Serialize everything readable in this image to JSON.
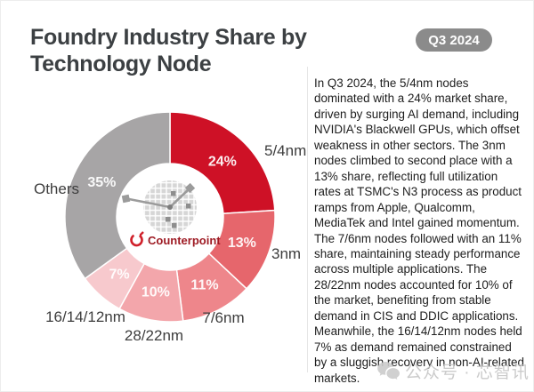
{
  "header": {
    "title": "Foundry Industry Share by Technology Node",
    "badge": "Q3 2024"
  },
  "chart_data": {
    "type": "pie",
    "subtype": "donut",
    "title": "Foundry Industry Share by Technology Node",
    "period": "Q3 2024",
    "unit": "percent",
    "start_angle_deg": 0,
    "direction": "clockwise",
    "slices": [
      {
        "label": "5/4nm",
        "value": 24,
        "percent_label": "24%",
        "color": "#CE1126"
      },
      {
        "label": "3nm",
        "value": 13,
        "percent_label": "13%",
        "color": "#E6666C"
      },
      {
        "label": "7/6nm",
        "value": 11,
        "percent_label": "11%",
        "color": "#EE868B"
      },
      {
        "label": "28/22nm",
        "value": 10,
        "percent_label": "10%",
        "color": "#F3A6AB"
      },
      {
        "label": "16/14/12nm",
        "value": 7,
        "percent_label": "7%",
        "color": "#F7C9CD"
      },
      {
        "label": "Others",
        "value": 35,
        "percent_label": "35%",
        "color": "#A7A5A6"
      }
    ],
    "center_branding": "Counterpoint",
    "legend_position": "around-donut"
  },
  "logo": {
    "name": "Counterpoint",
    "text_color": "#9E1B24",
    "icon_color": "#D0202A"
  },
  "article": {
    "body": "In Q3 2024, the 5/4nm nodes dominated with a 24% market share, driven by surging AI demand, including NVIDIA's Blackwell GPUs, which offset weakness in other sectors. The 3nm nodes climbed to second place with a 13% share, reflecting full utilization rates at TSMC's N3 process as product ramps from Apple, Qualcomm, MediaTek and Intel gained momentum. The 7/6nm nodes followed with an 11% share, maintaining steady performance across multiple applications. The 28/22nm nodes accounted for 10% of the market, benefiting from stable demand in CIS and DDIC applications. Meanwhile, the 16/14/12nm nodes held 7% as demand remained constrained by a sluggish recovery in non-AI-related markets."
  },
  "watermark": {
    "text": "公众号 · 芯智讯"
  }
}
